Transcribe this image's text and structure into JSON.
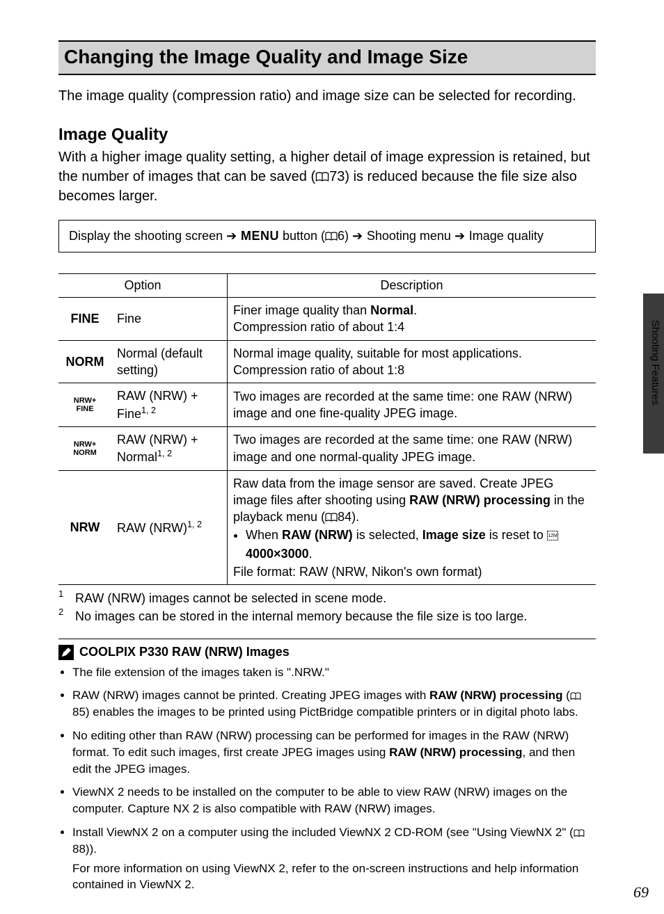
{
  "heading": "Changing the Image Quality and Image Size",
  "intro": "The image quality (compression ratio) and image size can be selected for recording.",
  "section_heading": "Image Quality",
  "section_para_a": "With a higher image quality setting, a higher detail of image expression is retained, but the number of images that can be saved (",
  "section_para_ref": "73",
  "section_para_b": ") is reduced because the file size also becomes larger.",
  "nav": {
    "a": "Display the shooting screen",
    "menu": "MENU",
    "b": " button (",
    "ref": "6",
    "c": ")",
    "d": "Shooting menu",
    "e": "Image quality"
  },
  "table": {
    "head_option": "Option",
    "head_desc": "Description",
    "rows": [
      {
        "icon": "FINE",
        "icon_small": false,
        "name_html": "Fine",
        "desc_html": "Finer image quality than <b>Normal</b>.<br>Compression ratio of about 1:4"
      },
      {
        "icon": "NORM",
        "icon_small": false,
        "name_html": "Normal (default setting)",
        "desc_html": "Normal image quality, suitable for most applications.<br>Compression ratio of about 1:8"
      },
      {
        "icon": "NRW+<br>FINE",
        "icon_small": true,
        "name_html": "RAW (NRW) + Fine<sup>1, 2</sup>",
        "desc_html": "Two images are recorded at the same time: one RAW (NRW) image and one fine-quality JPEG image."
      },
      {
        "icon": "NRW+<br>NORM",
        "icon_small": true,
        "name_html": "RAW (NRW) + Normal<sup>1, 2</sup>",
        "desc_html": "Two images are recorded at the same time: one RAW (NRW) image and one normal-quality JPEG image."
      },
      {
        "icon": "NRW",
        "icon_small": false,
        "name_html": "RAW (NRW)<sup>1, 2</sup>",
        "desc_html": "Raw data from the image sensor are saved. Create JPEG image files after shooting using <b>RAW (NRW) processing</b> in the playback menu (<svg class='book-icon' width='18' height='14' viewBox='0 0 18 14'><path d='M1 2 Q5 0 9 2 Q13 0 17 2 V12 Q13 10 9 12 Q5 10 1 12 Z' fill='none' stroke='#000' stroke-width='1.2'/><line x1='9' y1='2' x2='9' y2='12' stroke='#000' stroke-width='1.2'/></svg>84).<ul class='desc-bullets'><li>When <b>RAW (NRW)</b> is selected, <b>Image size</b> is reset to <span class='size-icon'><svg width='16' height='14' viewBox='0 0 16 14'><rect x='0.5' y='0.5' width='15' height='13' fill='none' stroke='#000' stroke-dasharray='2 1'/><text x='8' y='9' text-anchor='middle' font-size='7' font-family='Arial'>12M</text></svg></span> <b>4000×3000</b>.</li></ul>File format: RAW (NRW, Nikon's own format)"
      }
    ]
  },
  "footnotes": [
    "RAW (NRW) images cannot be selected in scene mode.",
    "No images can be stored in the internal memory because the file size is too large."
  ],
  "note_heading": "COOLPIX P330 RAW (NRW) Images",
  "notes": [
    "The file extension of the images taken is \".NRW.\"",
    "RAW (NRW) images cannot be printed. Creating JPEG images with <b>RAW (NRW) processing</b> (<svg class='book-icon' width='16' height='12' viewBox='0 0 18 14'><path d='M1 2 Q5 0 9 2 Q13 0 17 2 V12 Q13 10 9 12 Q5 10 1 12 Z' fill='none' stroke='#000' stroke-width='1.2'/><line x1='9' y1='2' x2='9' y2='12' stroke='#000' stroke-width='1.2'/></svg>85) enables the images to be printed using PictBridge compatible printers or in digital photo labs.",
    "No editing other than RAW (NRW) processing can be performed for images in the RAW (NRW) format. To edit such images, first create JPEG images using <b>RAW (NRW) processing</b>, and then edit the JPEG images.",
    "ViewNX 2 needs to be installed on the computer to be able to view RAW (NRW) images on the computer. Capture NX 2 is also compatible with RAW (NRW) images.",
    "Install ViewNX 2 on a computer using the included ViewNX 2 CD-ROM (see \"Using ViewNX 2\" (<svg class='book-icon' width='16' height='12' viewBox='0 0 18 14'><path d='M1 2 Q5 0 9 2 Q13 0 17 2 V12 Q13 10 9 12 Q5 10 1 12 Z' fill='none' stroke='#000' stroke-width='1.2'/><line x1='9' y1='2' x2='9' y2='12' stroke='#000' stroke-width='1.2'/></svg>88)).<span class='cont'>For more information on using ViewNX 2, refer to the on-screen instructions and help information contained in ViewNX 2.</span>"
  ],
  "side_label": "Shooting Features",
  "page_number": "69"
}
